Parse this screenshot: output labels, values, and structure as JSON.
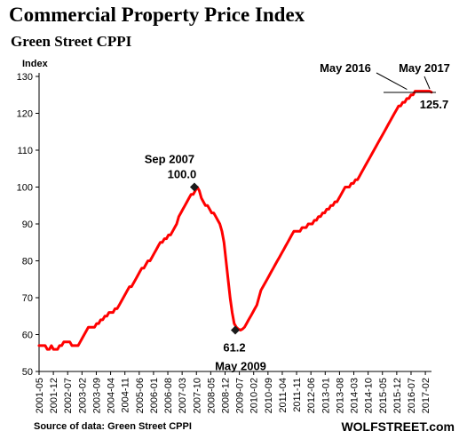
{
  "title": "Commercial Property Price Index",
  "subtitle": "Green Street CPPI",
  "source": "Source of data: Green Street CPPI",
  "brand": "WOLFSTREET.com",
  "colors": {
    "line": "#ff0000",
    "marker": "#1a1a1a",
    "text": "#000000"
  },
  "chart_data": {
    "type": "line",
    "ylabel": "Index",
    "ylim": [
      50,
      130
    ],
    "yticks": [
      50,
      60,
      70,
      80,
      90,
      100,
      110,
      120,
      130
    ],
    "grid": false,
    "x_start": "2001-05",
    "x_end": "2017-05",
    "x_tick_labels": [
      "2001-05",
      "2001-12",
      "2002-07",
      "2003-02",
      "2003-09",
      "2004-04",
      "2004-11",
      "2005-06",
      "2006-01",
      "2006-08",
      "2007-03",
      "2007-10",
      "2008-05",
      "2008-12",
      "2009-07",
      "2010-02",
      "2010-09",
      "2011-04",
      "2011-11",
      "2012-06",
      "2013-01",
      "2013-08",
      "2014-03",
      "2014-10",
      "2015-05",
      "2015-12",
      "2016-07",
      "2017-02"
    ],
    "series": [
      {
        "values": [
          57,
          57,
          57,
          57,
          56,
          56,
          57,
          56,
          56,
          56,
          57,
          57,
          58,
          58,
          58,
          58,
          57,
          57,
          57,
          57,
          58,
          59,
          60,
          61,
          62,
          62,
          62,
          62,
          63,
          63,
          64,
          64,
          65,
          65,
          66,
          66,
          66,
          67,
          67,
          68,
          69,
          70,
          71,
          72,
          73,
          73,
          74,
          75,
          76,
          77,
          78,
          78,
          79,
          80,
          80,
          81,
          82,
          83,
          84,
          85,
          85,
          86,
          86,
          87,
          87,
          88,
          89,
          90,
          92,
          93,
          94,
          95,
          96,
          97,
          98,
          98,
          99,
          100,
          99,
          97,
          96,
          95,
          95,
          94,
          93,
          93,
          92,
          91,
          90,
          88,
          85,
          80,
          75,
          70,
          66,
          63,
          62,
          61.5,
          61.2,
          61.5,
          62,
          63,
          64,
          65,
          66,
          67,
          68,
          70,
          72,
          73,
          74,
          75,
          76,
          77,
          78,
          79,
          80,
          81,
          82,
          83,
          84,
          85,
          86,
          87,
          88,
          88,
          88,
          88,
          89,
          89,
          89,
          90,
          90,
          90,
          91,
          91,
          92,
          92,
          93,
          93,
          94,
          94,
          95,
          95,
          96,
          96,
          97,
          98,
          99,
          100,
          100,
          100,
          101,
          101,
          102,
          102,
          103,
          104,
          105,
          106,
          107,
          108,
          109,
          110,
          111,
          112,
          113,
          114,
          115,
          116,
          117,
          118,
          119,
          120,
          121,
          122,
          122,
          123,
          123,
          124,
          124,
          125,
          125,
          126,
          126,
          126,
          126,
          126,
          126,
          126,
          126,
          125.7
        ]
      }
    ],
    "annotations": [
      {
        "x": "2007-09",
        "line1": "Sep 2007",
        "line2": "100.0",
        "y": 100.0
      },
      {
        "x": "2009-05",
        "line1": "61.2",
        "line2": "May 2009",
        "y": 61.2
      },
      {
        "x": "2016-05",
        "label": "May 2016",
        "y": 126
      },
      {
        "x": "2017-05",
        "label": "May 2017",
        "value_label": "125.7",
        "y": 125.7
      }
    ]
  }
}
